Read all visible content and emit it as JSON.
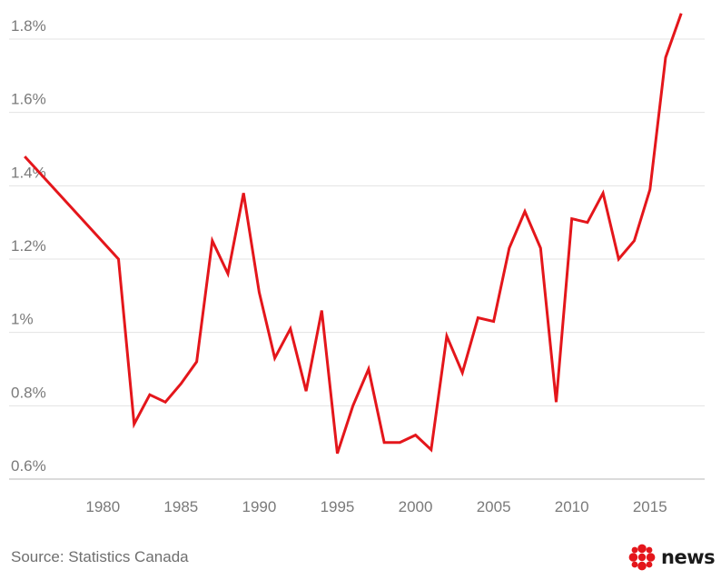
{
  "chart_data": {
    "type": "line",
    "title": "",
    "xlabel": "",
    "ylabel": "",
    "xlim": [
      1974,
      2018.5
    ],
    "ylim": [
      0.57,
      1.87
    ],
    "grid": "horizontal",
    "x_ticks": [
      1980,
      1985,
      1990,
      1995,
      2000,
      2005,
      2010,
      2015
    ],
    "x_tick_labels": [
      "1980",
      "1985",
      "1990",
      "1995",
      "2000",
      "2005",
      "2010",
      "2015"
    ],
    "y_ticks": [
      0.6,
      0.8,
      1.0,
      1.2,
      1.4,
      1.6,
      1.8
    ],
    "y_tick_labels": [
      "0.6%",
      "0.8%",
      "1%",
      "1.2%",
      "1.4%",
      "1.6%",
      "1.8%"
    ],
    "color": "#e4161b",
    "series": [
      {
        "x": [
          1975,
          1981,
          1982,
          1983,
          1984,
          1985,
          1986,
          1987,
          1988,
          1989,
          1990,
          1991,
          1992,
          1993,
          1994,
          1995,
          1996,
          1997,
          1998,
          1999,
          2000,
          2001,
          2002,
          2003,
          2004,
          2005,
          2006,
          2007,
          2008,
          2009,
          2010,
          2011,
          2012,
          2013,
          2014,
          2015,
          2016,
          2017
        ],
        "values": [
          1.48,
          1.2,
          0.75,
          0.83,
          0.81,
          0.86,
          0.92,
          1.25,
          1.16,
          1.38,
          1.11,
          0.93,
          1.01,
          0.84,
          1.06,
          0.67,
          0.8,
          0.9,
          0.7,
          0.7,
          0.72,
          0.68,
          0.99,
          0.89,
          1.04,
          1.03,
          1.23,
          1.33,
          1.23,
          0.81,
          1.31,
          1.3,
          1.38,
          1.2,
          1.25,
          1.39,
          1.75,
          1.87
        ]
      }
    ]
  },
  "footer": {
    "source": "Source: Statistics Canada",
    "logo_text": "news",
    "logo_icon": "cbc-gem-icon"
  }
}
